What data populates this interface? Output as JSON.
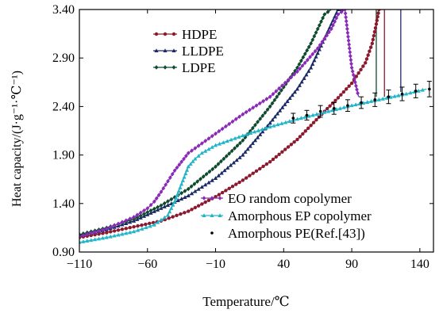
{
  "chart_data": {
    "type": "line",
    "xlabel": "Temperature/℃",
    "ylabel": "Heat capacity/(J·g⁻¹·℃⁻¹)",
    "xlim": [
      -110,
      150
    ],
    "ylim": [
      0.9,
      3.4
    ],
    "xticks": [
      -110,
      -60,
      -10,
      40,
      90,
      140
    ],
    "yticks": [
      0.9,
      1.4,
      1.9,
      2.4,
      2.9,
      3.4
    ],
    "x_tick_labels": [
      "−110",
      "−60",
      "−10",
      "40",
      "90",
      "140"
    ],
    "y_tick_labels": [
      "0.90",
      "1.40",
      "1.90",
      "2.40",
      "2.90",
      "3.40"
    ],
    "legend_top": [
      "HDPE",
      "LLDPE",
      "LDPE"
    ],
    "legend_bottom": [
      "EO random copolymer",
      "Amorphous EP copolymer",
      "Amorphous PE(Ref.[43])"
    ],
    "series": [
      {
        "name": "HDPE",
        "color": "#8b1a2e",
        "marker": "circle",
        "x": [
          -110,
          -90,
          -70,
          -50,
          -30,
          -10,
          10,
          30,
          50,
          70,
          80,
          90,
          100,
          105,
          108,
          110,
          114
        ],
        "y": [
          1.05,
          1.1,
          1.16,
          1.22,
          1.32,
          1.47,
          1.64,
          1.83,
          2.06,
          2.35,
          2.49,
          2.64,
          2.85,
          3.05,
          3.25,
          3.4,
          3.4
        ]
      },
      {
        "name": "LLDPE",
        "color": "#1a2a66",
        "marker": "triangle",
        "x": [
          -110,
          -90,
          -70,
          -50,
          -30,
          -10,
          10,
          30,
          50,
          60,
          65,
          70,
          75,
          80,
          85
        ],
        "y": [
          1.07,
          1.13,
          1.22,
          1.35,
          1.48,
          1.66,
          1.9,
          2.23,
          2.58,
          2.8,
          2.95,
          3.1,
          3.25,
          3.4,
          3.4
        ]
      },
      {
        "name": "LDPE",
        "color": "#0f4a2e",
        "marker": "diamond",
        "x": [
          -110,
          -90,
          -70,
          -50,
          -30,
          -10,
          10,
          30,
          50,
          60,
          65,
          70,
          75
        ],
        "y": [
          1.08,
          1.15,
          1.24,
          1.38,
          1.55,
          1.78,
          2.05,
          2.4,
          2.8,
          3.05,
          3.2,
          3.35,
          3.4
        ]
      },
      {
        "name": "EO random copolymer",
        "color": "#8a2bb8",
        "marker": "diamond",
        "x": [
          -110,
          -90,
          -70,
          -60,
          -55,
          -50,
          -45,
          -40,
          -30,
          -10,
          10,
          30,
          50,
          65,
          75,
          80,
          85,
          90,
          95
        ],
        "y": [
          1.06,
          1.14,
          1.26,
          1.35,
          1.42,
          1.52,
          1.63,
          1.74,
          1.92,
          2.12,
          2.32,
          2.5,
          2.76,
          3.0,
          3.2,
          3.35,
          3.4,
          2.8,
          2.5
        ]
      },
      {
        "name": "Amorphous EP copolymer",
        "color": "#22b5c8",
        "marker": "triangle",
        "x": [
          -110,
          -90,
          -70,
          -55,
          -45,
          -40,
          -35,
          -30,
          -25,
          -20,
          -10,
          10,
          30,
          50,
          70,
          90,
          110,
          130,
          145
        ],
        "y": [
          1.0,
          1.05,
          1.11,
          1.18,
          1.28,
          1.42,
          1.6,
          1.78,
          1.86,
          1.92,
          2.0,
          2.1,
          2.19,
          2.27,
          2.34,
          2.41,
          2.47,
          2.53,
          2.58
        ]
      },
      {
        "name": "Amorphous PE(Ref.[43])",
        "color": "#000000",
        "marker": "dot",
        "x": [
          47,
          57,
          67,
          77,
          87,
          97,
          107,
          117,
          127,
          137,
          147
        ],
        "y": [
          2.28,
          2.31,
          2.35,
          2.38,
          2.41,
          2.44,
          2.47,
          2.5,
          2.53,
          2.56,
          2.58
        ],
        "error": [
          0.05,
          0.05,
          0.06,
          0.06,
          0.06,
          0.06,
          0.07,
          0.07,
          0.07,
          0.07,
          0.08
        ]
      }
    ],
    "vertical_lines": [
      {
        "series": "HDPE",
        "x": 114,
        "y_from": 2.5,
        "y_to": 3.4
      },
      {
        "series": "LLDPE",
        "x": 126,
        "y_from": 2.55,
        "y_to": 3.4
      },
      {
        "series": "LDPE",
        "x": 108,
        "y_from": 2.5,
        "y_to": 3.4
      }
    ]
  }
}
